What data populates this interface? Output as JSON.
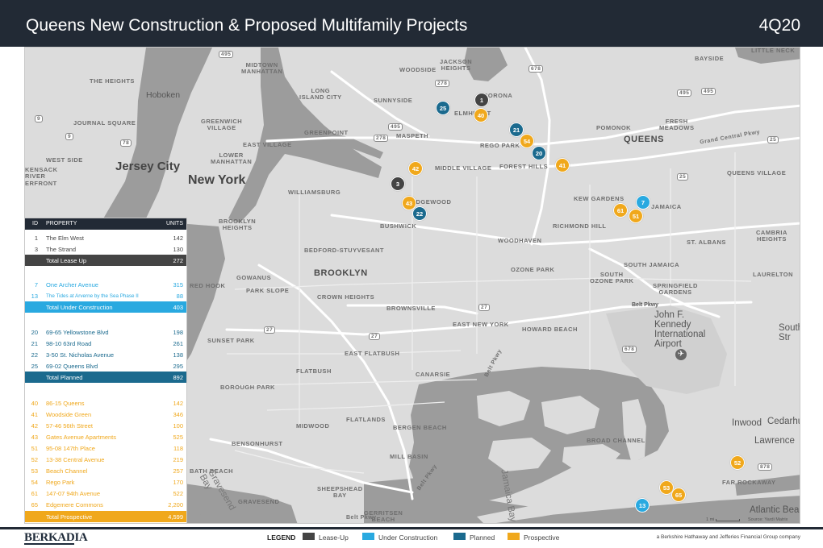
{
  "header": {
    "title": "Queens New Construction & Proposed Multifamily Projects",
    "quarter": "4Q20"
  },
  "map": {
    "area_labels": {
      "midtown": "MIDTOWN\nMANHATTAN",
      "the_heights": "THE HEIGHTS",
      "hoboken": "Hoboken",
      "journal_square": "JOURNAL SQUARE",
      "greenwich": "GREENWICH\nVILLAGE",
      "east_village": "EAST VILLAGE",
      "lower_manhattan": "LOWER\nMANHATTAN",
      "west_side": "WEST SIDE",
      "jersey_city": "Jersey City",
      "kensack": "KENSACK\nRIVER\nERFRONT",
      "new_york": "New York",
      "long_island_city": "LONG\nISLAND CITY",
      "sunnyside": "SUNNYSIDE",
      "greenpoint": "GREENPOINT",
      "maspeth": "MASPETH",
      "williamsburg": "WILLIAMSBURG",
      "jackson_heights": "JACKSON\nHEIGHTS",
      "woodside": "WOODSIDE",
      "corona": "CORONA",
      "elmhurst": "ELMHURST",
      "rego_park": "REGO PARK",
      "middle_village": "MIDDLE VILLAGE",
      "forest_hills": "FOREST HILLS",
      "ridgewood": "RIDGEWOOD",
      "kew_gardens": "KEW GARDENS",
      "jamaica": "JAMAICA",
      "pomonok": "POMONOK",
      "fresh_meadows": "FRESH\nMEADOWS",
      "queens": "QUEENS",
      "queens_village": "QUEENS VILLAGE",
      "bayside": "BAYSIDE",
      "little_neck": "LITTLE NECK",
      "brooklyn_heights": "BROOKLYN\nHEIGHTS",
      "bushwick": "BUSHWICK",
      "richmond_hill": "RICHMOND HILL",
      "woodhaven": "WOODHAVEN",
      "cambria_heights": "CAMBRIA\nHEIGHTS",
      "st_albans": "ST. ALBANS",
      "bed_stuy": "BEDFORD-STUYVESANT",
      "brooklyn": "BROOKLYN",
      "ozone_park": "OZONE PARK",
      "south_jamaica": "SOUTH JAMAICA",
      "south_ozone_park": "SOUTH\nOZONE PARK",
      "laurelton": "LAURELTON",
      "gowanus": "GOWANUS",
      "red_hook": "RED HOOK",
      "park_slope": "PARK SLOPE",
      "crown_heights": "CROWN HEIGHTS",
      "springfield_gardens": "SPRINGFIELD\nGARDENS",
      "brownsville": "BROWNSVILLE",
      "belt_pkwy": "Belt Pkwy",
      "east_new_york": "EAST NEW YORK",
      "howard_beach": "HOWARD BEACH",
      "jfk": "John F.\nKennedy\nInternational\nAirport",
      "south": "South\nStr",
      "sunset_park": "SUNSET PARK",
      "east_flatbush": "EAST FLATBUSH",
      "flatbush": "FLATBUSH",
      "canarsie": "CANARSIE",
      "borough_park": "BOROUGH PARK",
      "flatlands": "FLATLANDS",
      "midwood": "MIDWOOD",
      "bergen_beach": "BERGEN BEACH",
      "broad_channel": "BROAD CHANNEL",
      "inwood": "Inwood",
      "cedarhurst": "Cedarhu",
      "lawrence": "Lawrence",
      "bensonhurst": "BENSONHURST",
      "mill_basin": "MILL BASIN",
      "bath_beach": "BATH BEACH",
      "far_rockaway": "FAR ROCKAWAY",
      "sheepshead_bay": "SHEEPSHEAD\nBAY",
      "gravesend": "GRAVESEND",
      "gravesend_bay": "Gravesend\nBay",
      "gerritsen_beach": "GERRITSEN\nBEACH",
      "atlantic_beach": "Atlantic Bea",
      "jamaica_bay": "Jamaica Bay",
      "grand_central_pkwy": "Grand Central Pkwy",
      "belt_pkwy_2": "Belt Pkwy",
      "belt_pkwy_3": "Belt Pkwy",
      "belt_pkwy_4": "Belt Pkwy"
    },
    "highway_shields": [
      "495",
      "678",
      "278",
      "495",
      "9",
      "9",
      "78",
      "495",
      "278",
      "25",
      "25",
      "27",
      "27",
      "27",
      "678",
      "878",
      "495"
    ],
    "markers": [
      {
        "id": "1",
        "status": "lease"
      },
      {
        "id": "25",
        "status": "planned"
      },
      {
        "id": "40",
        "status": "prospective"
      },
      {
        "id": "21",
        "status": "planned"
      },
      {
        "id": "54",
        "status": "prospective"
      },
      {
        "id": "20",
        "status": "planned"
      },
      {
        "id": "41",
        "status": "prospective"
      },
      {
        "id": "42",
        "status": "prospective"
      },
      {
        "id": "3",
        "status": "lease"
      },
      {
        "id": "43",
        "status": "prospective"
      },
      {
        "id": "22",
        "status": "planned"
      },
      {
        "id": "7",
        "status": "under"
      },
      {
        "id": "61",
        "status": "prospective"
      },
      {
        "id": "51",
        "status": "prospective"
      },
      {
        "id": "52",
        "status": "prospective"
      },
      {
        "id": "53",
        "status": "prospective"
      },
      {
        "id": "65",
        "status": "prospective"
      },
      {
        "id": "13",
        "status": "under"
      }
    ],
    "scale_label": "1 mi",
    "source_label": "Source: Yardi Matrix"
  },
  "table": {
    "headers": {
      "id": "ID",
      "property": "PROPERTY",
      "units": "UNITS"
    },
    "groups": [
      {
        "status": "lease",
        "rows": [
          {
            "id": "1",
            "name": "The Elm West",
            "units": "142"
          },
          {
            "id": "3",
            "name": "The Strand",
            "units": "130"
          }
        ],
        "total_label": "Total Lease Up",
        "total_units": "272"
      },
      {
        "status": "under",
        "rows": [
          {
            "id": "7",
            "name": "One Archer Avenue",
            "units": "315"
          },
          {
            "id": "13",
            "name": "The Tides at Arverne by the Sea Phase II",
            "units": "88"
          }
        ],
        "total_label": "Total Under Construction",
        "total_units": "403"
      },
      {
        "status": "planned",
        "rows": [
          {
            "id": "20",
            "name": "69-65 Yellowstone Blvd",
            "units": "198"
          },
          {
            "id": "21",
            "name": "98-10 63rd Road",
            "units": "261"
          },
          {
            "id": "22",
            "name": "3-50 St. Nicholas Avenue",
            "units": "138"
          },
          {
            "id": "25",
            "name": "69-02 Queens Blvd",
            "units": "295"
          }
        ],
        "total_label": "Total Planned",
        "total_units": "892"
      },
      {
        "status": "prospective",
        "rows": [
          {
            "id": "40",
            "name": "86-15 Queens",
            "units": "142"
          },
          {
            "id": "41",
            "name": "Woodside Green",
            "units": "346"
          },
          {
            "id": "42",
            "name": "57-46 56th Street",
            "units": "100"
          },
          {
            "id": "43",
            "name": "Gates Avenue Apartments",
            "units": "525"
          },
          {
            "id": "51",
            "name": "95-08 147th Place",
            "units": "118"
          },
          {
            "id": "52",
            "name": "13-38 Central Avenue",
            "units": "219"
          },
          {
            "id": "53",
            "name": "Beach Channel",
            "units": "257"
          },
          {
            "id": "54",
            "name": "Rego Park",
            "units": "170"
          },
          {
            "id": "61",
            "name": "147-07 94th Avenue",
            "units": "522"
          },
          {
            "id": "65",
            "name": "Edgemere Commons",
            "units": "2,200"
          }
        ],
        "total_label": "Total Prospective",
        "total_units": "4,599"
      }
    ]
  },
  "footer": {
    "logo": "BERKADIA",
    "legend_title": "LEGEND",
    "legend": [
      {
        "label": "Lease-Up",
        "color": "#444444"
      },
      {
        "label": "Under Construction",
        "color": "#29a9e0"
      },
      {
        "label": "Planned",
        "color": "#1b6a8e"
      },
      {
        "label": "Prospective",
        "color": "#f0a81c"
      }
    ],
    "credit": "a Berkshire Hathaway and Jefferies Financial Group company"
  },
  "colors": {
    "header_bg": "#222a35",
    "water": "#9a9a9a",
    "land": "#dcdcdc",
    "lease": "#444444",
    "under": "#29a9e0",
    "planned": "#1b6a8e",
    "prospective": "#f0a81c"
  }
}
